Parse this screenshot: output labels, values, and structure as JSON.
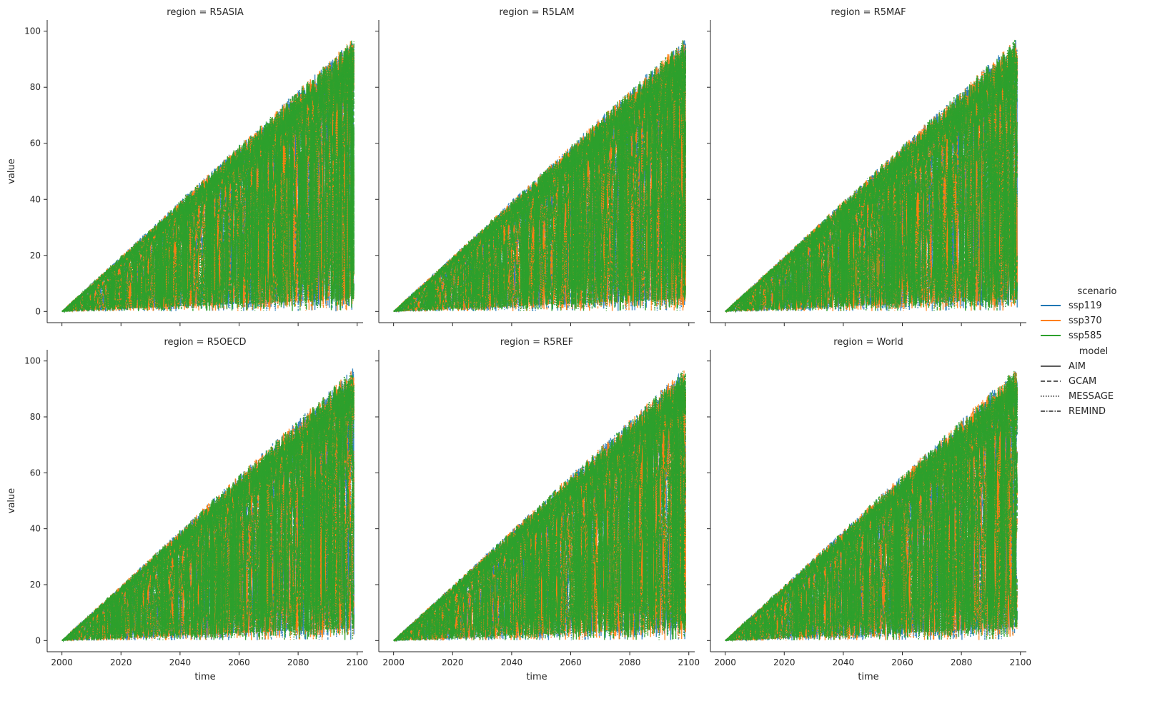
{
  "chart_data": {
    "type": "line",
    "layout": "facet-grid",
    "facet_variable": "region",
    "facet_title_prefix": "region = ",
    "panels": [
      "R5ASIA",
      "R5LAM",
      "R5MAF",
      "R5OECD",
      "R5REF",
      "World"
    ],
    "xlabel": "time",
    "ylabel": "value",
    "xlim": [
      1995,
      2102
    ],
    "ylim": [
      -4,
      104
    ],
    "xticks": [
      2000,
      2020,
      2040,
      2060,
      2080,
      2100
    ],
    "yticks": [
      0,
      20,
      40,
      60,
      80,
      100
    ],
    "x_range": [
      2000,
      2099
    ],
    "envelope": {
      "description_values": "values start near 0 in 2000 and fill the band between ~0 and an upper bound rising roughly linearly to ~98 by 2099",
      "upper_start": 0,
      "upper_end": 98
    },
    "series": [
      {
        "name": "ssp119",
        "color": "#1f77b4"
      },
      {
        "name": "ssp370",
        "color": "#ff7f0e"
      },
      {
        "name": "ssp585",
        "color": "#2ca02c"
      }
    ],
    "line_styles": [
      {
        "name": "AIM",
        "dash": "solid"
      },
      {
        "name": "GCAM",
        "dash": "dashed"
      },
      {
        "name": "MESSAGE",
        "dash": "dotted"
      },
      {
        "name": "REMIND",
        "dash": "dashdot"
      }
    ],
    "legend": {
      "placement": "right",
      "hue_title": "scenario",
      "style_title": "model"
    },
    "grid": false
  }
}
